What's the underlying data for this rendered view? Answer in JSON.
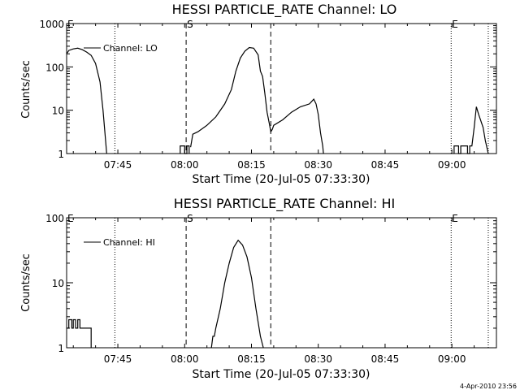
{
  "figure": {
    "timestamp": "4-Apr-2010 23:56"
  },
  "chart_data": [
    {
      "type": "line",
      "title": "HESSI PARTICLE_RATE Channel: LO",
      "xlabel": "Start Time (20-Jul-05 07:33:30)",
      "ylabel": "Counts/sec",
      "yscale": "log",
      "ylim": [
        1,
        1000
      ],
      "yticks": [
        "1",
        "10",
        "100",
        "1000"
      ],
      "xlim": [
        "07:33:30",
        "09:10"
      ],
      "xticks": [
        "07:45",
        "08:00",
        "08:15",
        "08:30",
        "08:45",
        "09:00"
      ],
      "legend": {
        "placement": "top-left",
        "label": "Channel: LO"
      },
      "markers": [
        {
          "label": "E",
          "time": "07:33:30",
          "style": "none"
        },
        {
          "label": "",
          "time": "07:44:20",
          "style": "dotted"
        },
        {
          "label": "S",
          "time": "08:00:20",
          "style": "dashed"
        },
        {
          "label": "",
          "time": "08:19:20",
          "style": "dashed"
        },
        {
          "label": "E",
          "time": "08:59:50",
          "style": "dotted"
        },
        {
          "label": "",
          "time": "09:08:10",
          "style": "dotted"
        }
      ],
      "series": [
        {
          "segments": [
            [
              [
                "07:33:30",
                200
              ],
              [
                "07:34:00",
                240
              ],
              [
                "07:35:00",
                260
              ],
              [
                "07:36:00",
                270
              ],
              [
                "07:37:00",
                250
              ],
              [
                "07:38:00",
                220
              ],
              [
                "07:39:00",
                185
              ],
              [
                "07:40:00",
                120
              ],
              [
                "07:41:00",
                45
              ],
              [
                "07:41:40",
                10
              ],
              [
                "07:42:00",
                4
              ],
              [
                "07:42:30",
                1
              ]
            ],
            [
              [
                "07:59:00",
                1
              ],
              [
                "07:59:00",
                1.5
              ],
              [
                "08:00:00",
                1.5
              ],
              [
                "08:00:00",
                1
              ],
              [
                "08:00:30",
                1
              ],
              [
                "08:00:30",
                1.5
              ],
              [
                "08:01:00",
                1.5
              ],
              [
                "08:01:00",
                1
              ]
            ],
            [
              [
                "08:01:20",
                1.4
              ],
              [
                "08:01:50",
                2.8
              ],
              [
                "08:03:00",
                3.2
              ],
              [
                "08:05:00",
                4.5
              ],
              [
                "08:07:00",
                7
              ],
              [
                "08:09:00",
                14
              ],
              [
                "08:10:30",
                30
              ],
              [
                "08:11:30",
                80
              ],
              [
                "08:12:30",
                160
              ],
              [
                "08:13:30",
                230
              ],
              [
                "08:14:30",
                280
              ],
              [
                "08:15:30",
                270
              ],
              [
                "08:16:30",
                190
              ],
              [
                "08:17:00",
                80
              ],
              [
                "08:17:30",
                60
              ],
              [
                "08:18:00",
                25
              ],
              [
                "08:18:30",
                9
              ],
              [
                "08:19:00",
                5
              ],
              [
                "08:19:20",
                3.2
              ],
              [
                "08:19:40",
                3.6
              ],
              [
                "08:20:00",
                4.5
              ],
              [
                "08:22:00",
                6
              ],
              [
                "08:24:00",
                9
              ],
              [
                "08:26:00",
                12
              ],
              [
                "08:28:00",
                14
              ],
              [
                "08:29:00",
                18
              ],
              [
                "08:29:30",
                14
              ],
              [
                "08:30:00",
                8
              ],
              [
                "08:30:30",
                3
              ],
              [
                "08:31:00",
                1.5
              ],
              [
                "08:31:10",
                1
              ]
            ],
            [
              [
                "09:00:30",
                1
              ],
              [
                "09:00:30",
                1.5
              ],
              [
                "09:01:30",
                1.5
              ],
              [
                "09:01:30",
                1
              ],
              [
                "09:02:00",
                1
              ],
              [
                "09:02:00",
                1.5
              ],
              [
                "09:03:30",
                1.5
              ],
              [
                "09:03:30",
                1
              ],
              [
                "09:04:00",
                1
              ],
              [
                "09:04:00",
                1.5
              ],
              [
                "09:04:30",
                1.5
              ],
              [
                "09:05:00",
                4
              ],
              [
                "09:05:30",
                12
              ],
              [
                "09:06:00",
                8
              ],
              [
                "09:07:00",
                4
              ],
              [
                "09:07:30",
                2
              ],
              [
                "09:08:00",
                1.2
              ],
              [
                "09:08:10",
                1
              ]
            ]
          ]
        }
      ]
    },
    {
      "type": "line",
      "title": "HESSI PARTICLE_RATE Channel: HI",
      "xlabel": "Start Time (20-Jul-05 07:33:30)",
      "ylabel": "Counts/sec",
      "yscale": "log",
      "ylim": [
        1,
        100
      ],
      "yticks": [
        "1",
        "10",
        "100"
      ],
      "xlim": [
        "07:33:30",
        "09:10"
      ],
      "xticks": [
        "07:45",
        "08:00",
        "08:15",
        "08:30",
        "08:45",
        "09:00"
      ],
      "legend": {
        "placement": "top-left",
        "label": "Channel: HI"
      },
      "markers": [
        {
          "label": "E",
          "time": "07:33:30",
          "style": "none"
        },
        {
          "label": "",
          "time": "07:44:20",
          "style": "dotted"
        },
        {
          "label": "S",
          "time": "08:00:20",
          "style": "dashed"
        },
        {
          "label": "",
          "time": "08:19:20",
          "style": "dashed"
        },
        {
          "label": "E",
          "time": "08:59:50",
          "style": "dotted"
        },
        {
          "label": "",
          "time": "09:08:10",
          "style": "dotted"
        }
      ],
      "series": [
        {
          "segments": [
            [
              [
                "07:33:30",
                2
              ],
              [
                "07:34:00",
                2
              ],
              [
                "07:34:00",
                2.7
              ],
              [
                "07:34:40",
                2.7
              ],
              [
                "07:34:40",
                2
              ],
              [
                "07:35:00",
                2
              ],
              [
                "07:35:00",
                2.7
              ],
              [
                "07:35:30",
                2.7
              ],
              [
                "07:35:30",
                2
              ],
              [
                "07:36:00",
                2
              ],
              [
                "07:36:00",
                2.7
              ],
              [
                "07:36:30",
                2.7
              ],
              [
                "07:36:30",
                2
              ],
              [
                "07:39:00",
                2
              ],
              [
                "07:39:00",
                1
              ]
            ],
            [
              [
                "08:06:00",
                1
              ],
              [
                "08:06:20",
                1.5
              ],
              [
                "08:06:40",
                1.5
              ],
              [
                "08:07:00",
                2
              ],
              [
                "08:08:00",
                4
              ],
              [
                "08:09:00",
                10
              ],
              [
                "08:10:00",
                20
              ],
              [
                "08:11:00",
                35
              ],
              [
                "08:12:00",
                45
              ],
              [
                "08:13:00",
                38
              ],
              [
                "08:14:00",
                25
              ],
              [
                "08:15:00",
                12
              ],
              [
                "08:16:00",
                4
              ],
              [
                "08:17:00",
                1.5
              ],
              [
                "08:17:40",
                1
              ]
            ]
          ]
        }
      ]
    }
  ]
}
